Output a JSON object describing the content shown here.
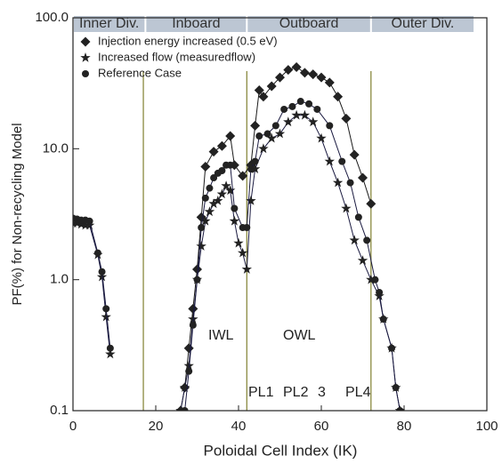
{
  "chart_data": {
    "type": "line",
    "log_y": true,
    "x_label": "Poloidal Cell Index (IK)",
    "y_label": "PF(%) for Non-recycling Model",
    "xlim": [
      0,
      100
    ],
    "ylim": [
      0.1,
      100
    ],
    "xticks": [
      0,
      20,
      40,
      60,
      80,
      100
    ],
    "yticks": [
      0.1,
      {
        "value": 1,
        "label": "1.0"
      },
      {
        "value": 10,
        "label": "10.0"
      },
      {
        "value": 100,
        "label": "100.0"
      }
    ],
    "regions": [
      {
        "label": "Inner Div.",
        "from": 0,
        "to": 17.5
      },
      {
        "label": "Inboard",
        "from": 17.5,
        "to": 42
      },
      {
        "label": "Outboard",
        "from": 42,
        "to": 72
      },
      {
        "label": "Outer  Div.",
        "from": 72,
        "to": 97
      }
    ],
    "dividers": [
      17,
      42,
      72
    ],
    "annotations": [
      "IWL",
      "OWL",
      "PL1",
      "PL2",
      "3",
      "PL4"
    ],
    "legend": "upper left",
    "series": [
      {
        "name": "Injection energy increased (0.5 eV)",
        "marker": "diamond",
        "color": "#1a1a1a",
        "x": [
          26,
          27,
          28,
          29,
          30,
          31,
          32,
          34,
          36,
          38,
          39,
          41,
          43,
          44,
          45,
          46,
          48,
          50,
          52,
          54,
          56,
          58,
          60,
          62,
          64,
          66,
          68,
          70,
          72
        ],
        "values": [
          0.1,
          0.15,
          0.3,
          0.6,
          1.2,
          3.0,
          7.3,
          9.5,
          10.5,
          12.5,
          7.5,
          6.2,
          7.5,
          15,
          28,
          25,
          30,
          35,
          40,
          42,
          38,
          37,
          35,
          32,
          25,
          17,
          9,
          6,
          3.8
        ]
      },
      {
        "name": "Increased flow (measuredflow)",
        "marker": "star",
        "color": "#1a1a40",
        "x": [
          0,
          1,
          2,
          3,
          4,
          6,
          7,
          8,
          9,
          17,
          26,
          27,
          28,
          29,
          30,
          31,
          32,
          33,
          34,
          35,
          36,
          37,
          38,
          39,
          40,
          41,
          42,
          43,
          44,
          46,
          48,
          50,
          52,
          54,
          56,
          58,
          60,
          62,
          64,
          66,
          68,
          70,
          72,
          74,
          75,
          77,
          78,
          79
        ],
        "values": [
          2.7,
          2.7,
          2.65,
          2.6,
          2.6,
          1.55,
          1.05,
          0.52,
          0.27,
          null,
          0.1,
          0.15,
          0.22,
          0.5,
          1.0,
          1.8,
          2.8,
          3.3,
          3.8,
          4.0,
          4.5,
          5.2,
          4.8,
          2.8,
          1.9,
          1.6,
          1.2,
          4,
          7,
          10,
          12,
          13,
          16,
          18,
          18,
          16,
          12,
          8,
          5.5,
          3.5,
          2,
          1.4,
          1.0,
          0.75,
          0.5,
          0.3,
          0.15,
          0.1
        ]
      },
      {
        "name": "Reference Case",
        "marker": "circle",
        "color": "#1a1a40",
        "x": [
          0,
          1,
          2,
          3,
          4,
          6,
          7,
          8,
          9,
          17,
          27,
          28,
          29,
          30,
          31,
          32,
          33,
          34,
          35,
          36,
          37,
          38,
          39,
          41,
          42,
          43,
          44,
          45,
          47,
          49,
          51,
          53,
          55,
          57,
          59,
          62,
          65,
          67,
          69,
          71,
          73,
          74,
          75,
          77,
          78,
          79
        ],
        "values": [
          2.95,
          2.9,
          2.85,
          2.85,
          2.8,
          1.6,
          1.15,
          0.6,
          0.3,
          null,
          0.1,
          0.2,
          0.45,
          1.0,
          2.5,
          4.2,
          5.0,
          6.0,
          6.5,
          6.8,
          7.5,
          7.5,
          3.5,
          2.5,
          2.5,
          7,
          8,
          12.5,
          13,
          15,
          20,
          21,
          23,
          22,
          20,
          15,
          8,
          5.5,
          3,
          2,
          1.0,
          0.8,
          0.5,
          0.3,
          0.15,
          0.1
        ]
      }
    ]
  }
}
